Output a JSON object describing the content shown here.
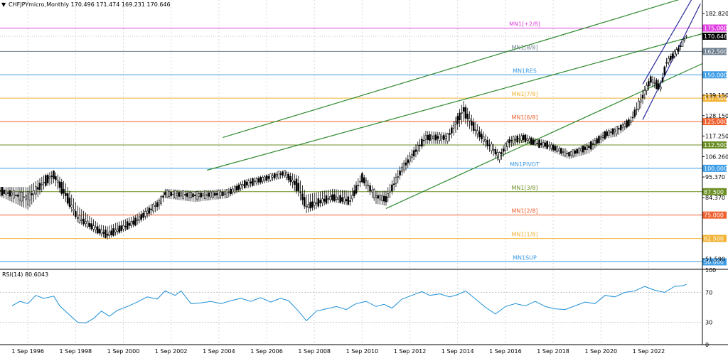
{
  "header": {
    "symbol_line": "CHFJPYmicro,Monthly  170.496 171.474 169.231 170.646"
  },
  "rsi_panel": {
    "label": "RSI(14) 80.6043",
    "ticks": [
      "100",
      "70",
      "30",
      "0"
    ]
  },
  "x_ticks": [
    "1 Sep 1996",
    "1 Sep 1998",
    "1 Sep 2000",
    "1 Sep 2002",
    "1 Sep 2004",
    "1 Sep 2006",
    "1 Sep 2008",
    "1 Sep 2010",
    "1 Sep 2012",
    "1 Sep 2014",
    "1 Sep 2016",
    "1 Sep 2018",
    "1 Sep 2020",
    "1 Sep 2022"
  ],
  "price_ticks": [
    "182.820",
    "139.150",
    "128.150",
    "117.250",
    "106.260",
    "95.370",
    "84.370",
    "51.590"
  ],
  "current_price": "170.646",
  "chart_data": {
    "type": "candlestick",
    "instrument": "CHFJPYmicro",
    "timeframe": "Monthly",
    "last_bar": {
      "open": 170.496,
      "high": 171.474,
      "low": 169.231,
      "close": 170.646
    },
    "y_range": [
      46.0,
      190.0
    ],
    "x_range": [
      "1995-07",
      "2024-12"
    ],
    "anchors": [
      [
        "1995-07",
        89,
        90,
        85,
        87
      ],
      [
        "1996-09",
        82,
        90,
        78,
        86
      ],
      [
        "1997-06",
        95,
        97,
        90,
        92
      ],
      [
        "1997-10",
        97,
        99,
        92,
        96
      ],
      [
        "1998-04",
        88,
        92,
        82,
        84
      ],
      [
        "1998-10",
        73,
        80,
        71,
        74
      ],
      [
        "1999-09",
        67,
        70,
        64,
        66
      ],
      [
        "2000-01",
        65,
        69,
        62,
        64
      ],
      [
        "2001-03",
        72,
        75,
        69,
        71
      ],
      [
        "2002-03",
        81,
        84,
        78,
        82
      ],
      [
        "2002-06",
        86,
        89,
        84,
        87
      ],
      [
        "2003-09",
        85,
        88,
        82,
        86
      ],
      [
        "2005-01",
        86,
        89,
        84,
        87
      ],
      [
        "2005-10",
        92,
        94,
        89,
        91
      ],
      [
        "2007-06",
        97,
        99,
        95,
        98
      ],
      [
        "2008-01",
        92,
        96,
        85,
        88
      ],
      [
        "2008-05",
        80,
        86,
        76,
        79
      ],
      [
        "2009-06",
        85,
        89,
        82,
        84
      ],
      [
        "2010-03",
        83,
        88,
        80,
        82
      ],
      [
        "2010-09",
        96,
        98,
        92,
        94
      ],
      [
        "2011-04",
        84,
        88,
        81,
        86
      ],
      [
        "2011-09",
        84,
        88,
        80,
        83
      ],
      [
        "2012-05",
        99,
        103,
        96,
        100
      ],
      [
        "2013-05",
        117,
        120,
        113,
        116
      ],
      [
        "2014-04",
        116,
        119,
        113,
        117
      ],
      [
        "2014-12",
        133,
        136,
        125,
        130
      ],
      [
        "2015-06",
        121,
        125,
        117,
        120
      ],
      [
        "2016-06",
        106,
        109,
        103,
        107
      ],
      [
        "2016-11",
        114,
        117,
        111,
        115
      ],
      [
        "2017-06",
        117,
        119,
        114,
        116
      ],
      [
        "2017-12",
        114,
        116,
        112,
        113
      ],
      [
        "2018-06",
        113,
        115,
        110,
        112
      ],
      [
        "2019-05",
        107,
        109,
        105,
        108
      ],
      [
        "2020-03",
        112,
        114,
        108,
        111
      ],
      [
        "2020-12",
        119,
        121,
        116,
        118
      ],
      [
        "2021-05",
        120,
        122,
        117,
        121
      ],
      [
        "2021-12",
        126,
        128,
        123,
        124
      ],
      [
        "2022-05",
        135,
        140,
        132,
        137
      ],
      [
        "2022-10",
        148,
        150,
        144,
        147
      ],
      [
        "2023-03",
        144,
        147,
        141,
        142
      ],
      [
        "2023-06",
        157,
        159,
        154,
        156
      ],
      [
        "2023-12",
        163,
        166,
        161,
        164
      ],
      [
        "2024-04",
        170.496,
        171.474,
        169.231,
        170.646
      ]
    ],
    "murrey_levels": [
      {
        "label": "MN1[+2/8]",
        "value": 175.0,
        "value_label": "175.000",
        "color": "#e040e0"
      },
      {
        "label": "MN1[8/8]",
        "value": 162.5,
        "value_label": "162.500",
        "color": "#708090"
      },
      {
        "label": "MN1RES",
        "value": 150.0,
        "value_label": "150.000",
        "color": "#3c9ce6"
      },
      {
        "label": "MN1[7/8]",
        "value": 137.5,
        "value_label": "137.500",
        "color": "#f2b233"
      },
      {
        "label": "MN1[6/8]",
        "value": 125.0,
        "value_label": "125.000",
        "color": "#f0602e"
      },
      {
        "label": "MN1[5/8]",
        "value": 112.5,
        "value_label": "112.500",
        "color": "#6b8e23"
      },
      {
        "label": "MN1PIVOT",
        "value": 100.0,
        "value_label": "100.000",
        "color": "#3c9ce6"
      },
      {
        "label": "MN1[3/8]",
        "value": 87.5,
        "value_label": "87.500",
        "color": "#6b8e23"
      },
      {
        "label": "MN1[2/8]",
        "value": 75.0,
        "value_label": "75.000",
        "color": "#f0602e"
      },
      {
        "label": "MN1[1/8]",
        "value": 62.5,
        "value_label": "62.500",
        "color": "#f2b233"
      },
      {
        "label": "MN1SUP",
        "value": 50.0,
        "value_label": "50.000",
        "color": "#3c9ce6"
      }
    ],
    "channels": [
      {
        "color": "#2e8b2e",
        "from": [
          "2004-11",
          116.5
        ],
        "to": [
          "2024-12",
          194.0
        ]
      },
      {
        "color": "#2e8b2e",
        "from": [
          "2004-03",
          99.0
        ],
        "to": [
          "2024-12",
          172.0
        ]
      },
      {
        "color": "#2e8b2e",
        "from": [
          "2011-09",
          78.5
        ],
        "to": [
          "2024-12",
          156.0
        ]
      },
      {
        "color": "#2a2a9e",
        "from": [
          "2022-06",
          145.0
        ],
        "to": [
          "2024-07",
          191.0
        ]
      },
      {
        "color": "#2a2a9e",
        "from": [
          "2022-06",
          126.0
        ],
        "to": [
          "2024-11",
          188.0
        ]
      }
    ],
    "rsi": {
      "name": "RSI(14)",
      "last": 80.6043,
      "levels": [
        70,
        30
      ],
      "y_range": [
        0,
        100
      ],
      "points": [
        [
          "1996-01",
          52
        ],
        [
          "1996-05",
          58
        ],
        [
          "1996-09",
          55
        ],
        [
          "1997-01",
          66
        ],
        [
          "1997-05",
          62
        ],
        [
          "1997-10",
          65
        ],
        [
          "1998-01",
          52
        ],
        [
          "1998-05",
          42
        ],
        [
          "1998-10",
          30
        ],
        [
          "1999-02",
          29
        ],
        [
          "1999-06",
          35
        ],
        [
          "1999-10",
          45
        ],
        [
          "2000-02",
          38
        ],
        [
          "2000-06",
          46
        ],
        [
          "2000-11",
          51
        ],
        [
          "2001-04",
          57
        ],
        [
          "2001-09",
          64
        ],
        [
          "2002-02",
          61
        ],
        [
          "2002-06",
          72
        ],
        [
          "2002-11",
          66
        ],
        [
          "2003-02",
          72
        ],
        [
          "2003-07",
          55
        ],
        [
          "2003-12",
          56
        ],
        [
          "2004-05",
          58
        ],
        [
          "2004-10",
          55
        ],
        [
          "2005-03",
          59
        ],
        [
          "2005-08",
          62
        ],
        [
          "2006-01",
          58
        ],
        [
          "2006-06",
          63
        ],
        [
          "2006-11",
          57
        ],
        [
          "2007-04",
          62
        ],
        [
          "2007-08",
          59
        ],
        [
          "2008-01",
          45
        ],
        [
          "2008-05",
          32
        ],
        [
          "2008-10",
          45
        ],
        [
          "2009-03",
          48
        ],
        [
          "2009-08",
          51
        ],
        [
          "2010-01",
          47
        ],
        [
          "2010-06",
          55
        ],
        [
          "2010-11",
          58
        ],
        [
          "2011-04",
          51
        ],
        [
          "2011-08",
          54
        ],
        [
          "2011-12",
          49
        ],
        [
          "2012-05",
          61
        ],
        [
          "2012-10",
          66
        ],
        [
          "2013-03",
          71
        ],
        [
          "2013-07",
          66
        ],
        [
          "2013-12",
          68
        ],
        [
          "2014-05",
          64
        ],
        [
          "2014-09",
          67
        ],
        [
          "2015-01",
          72
        ],
        [
          "2015-06",
          61
        ],
        [
          "2015-11",
          50
        ],
        [
          "2016-04",
          41
        ],
        [
          "2016-09",
          51
        ],
        [
          "2017-02",
          55
        ],
        [
          "2017-07",
          52
        ],
        [
          "2017-12",
          58
        ],
        [
          "2018-05",
          51
        ],
        [
          "2018-10",
          48
        ],
        [
          "2019-03",
          47
        ],
        [
          "2019-08",
          52
        ],
        [
          "2020-01",
          57
        ],
        [
          "2020-06",
          55
        ],
        [
          "2020-11",
          66
        ],
        [
          "2021-04",
          64
        ],
        [
          "2021-09",
          70
        ],
        [
          "2022-02",
          72
        ],
        [
          "2022-07",
          78
        ],
        [
          "2022-12",
          73
        ],
        [
          "2023-05",
          70
        ],
        [
          "2023-10",
          78
        ],
        [
          "2024-02",
          79
        ],
        [
          "2024-04",
          80.6
        ]
      ]
    }
  }
}
